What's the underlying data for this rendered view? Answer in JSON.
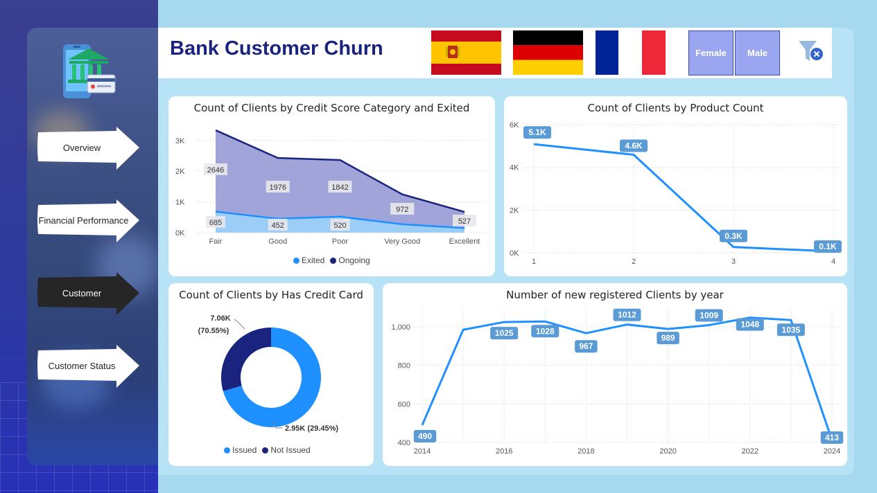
{
  "header": {
    "title": "Bank Customer Churn",
    "filters": {
      "countries": [
        "spain-flag",
        "germany-flag",
        "france-flag"
      ],
      "female_label": "Female",
      "male_label": "Male",
      "clear_filter_icon": "filter-clear-icon"
    }
  },
  "nav": {
    "logo_icon": "bank-mobile-icon",
    "items": [
      {
        "label": "Overview",
        "active": false
      },
      {
        "label": "Financial Performance",
        "active": false
      },
      {
        "label": "Customer",
        "active": true
      },
      {
        "label": "Customer Status",
        "active": false
      }
    ]
  },
  "colors": {
    "accent_blue": "#1e90ff",
    "navy": "#1a237e",
    "badge": "#5b9bd5",
    "area_ongoing": "#8f94d1",
    "area_exited": "#9ccdf6"
  },
  "chart_data": [
    {
      "type": "area",
      "title": "Count of Clients by Credit Score Category and Exited",
      "categories": [
        "Fair",
        "Good",
        "Poor",
        "Very Good",
        "Excellent"
      ],
      "series": [
        {
          "name": "Exited",
          "values": [
            685,
            452,
            520,
            272,
            148
          ]
        },
        {
          "name": "Ongoing",
          "values": [
            2646,
            1976,
            1842,
            972,
            527
          ]
        }
      ],
      "data_labels": {
        "Exited": [
          "685",
          "452",
          "520",
          "",
          ""
        ],
        "Ongoing": [
          "2646",
          "1976",
          "1842",
          "972",
          "527"
        ]
      },
      "stacked": true,
      "ylim": [
        0,
        3400
      ],
      "yticks": [
        "0K",
        "1K",
        "2K",
        "3K"
      ],
      "legend": "bottom"
    },
    {
      "type": "line",
      "title": "Count of Clients by Product Count",
      "x": [
        1,
        2,
        3,
        4
      ],
      "values": [
        5084,
        4590,
        266,
        60
      ],
      "data_labels": [
        "5.1K",
        "4.6K",
        "0.3K",
        "0.1K"
      ],
      "ylim": [
        0,
        6000
      ],
      "yticks": [
        "0K",
        "2K",
        "4K",
        "6K"
      ]
    },
    {
      "type": "pie",
      "title": "Count of Clients by Has Credit Card",
      "labels": [
        "Issued",
        "Not Issued"
      ],
      "values": [
        7055,
        2945
      ],
      "data_labels": [
        [
          "7.06K",
          "(70.55%)"
        ],
        [
          "2.95K (29.45%)"
        ]
      ],
      "legend": "bottom"
    },
    {
      "type": "line",
      "title": "Number of new registered Clients by year",
      "x": [
        2014,
        2015,
        2016,
        2017,
        2018,
        2019,
        2020,
        2021,
        2022,
        2023,
        2024
      ],
      "values": [
        490,
        985,
        1025,
        1028,
        967,
        1012,
        989,
        1009,
        1048,
        1035,
        413
      ],
      "data_labels": [
        "490",
        "",
        "1025",
        "1028",
        "967",
        "1012",
        "989",
        "1009",
        "1048",
        "1035",
        "413"
      ],
      "ylim": [
        400,
        1090
      ],
      "yticks": [
        "400",
        "600",
        "800",
        "1,000"
      ],
      "xticks": [
        "2014",
        "2016",
        "2018",
        "2020",
        "2022",
        "2024"
      ]
    }
  ]
}
